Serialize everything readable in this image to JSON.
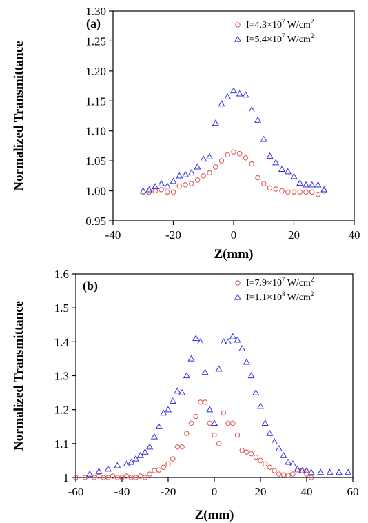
{
  "colors": {
    "series1": "#e05a5a",
    "series2": "#2f2fe0",
    "axis": "#000000"
  },
  "chart_data": [
    {
      "type": "scatter",
      "panel_label": "(a)",
      "xlabel": "Z(mm)",
      "ylabel": "Normalized Transmittance",
      "xlim": [
        -40,
        40
      ],
      "ylim": [
        0.95,
        1.3
      ],
      "xticks": [
        -40,
        -20,
        0,
        20,
        40
      ],
      "yticks": [
        0.95,
        1.0,
        1.05,
        1.1,
        1.15,
        1.2,
        1.25,
        1.3
      ],
      "ytick_labels": [
        "0.95",
        "1.00",
        "1.05",
        "1.10",
        "1.15",
        "1.20",
        "1.25",
        "1.30"
      ],
      "legend_position": "top-right",
      "series": [
        {
          "legend_base": "I=4.3×10",
          "legend_exp": "7",
          "legend_unit": " W/cm",
          "legend_unit_exp": "2",
          "marker": "circle",
          "x": [
            -30,
            -28,
            -26,
            -24,
            -22,
            -20,
            -18,
            -16,
            -14,
            -12,
            -10,
            -8,
            -6,
            -4,
            -2,
            0,
            2,
            4,
            6,
            8,
            10,
            12,
            14,
            16,
            18,
            20,
            22,
            24,
            26,
            28,
            30
          ],
          "y": [
            0.998,
            0.998,
            1.0,
            1.002,
            0.998,
            0.998,
            1.008,
            1.01,
            1.012,
            1.018,
            1.025,
            1.03,
            1.04,
            1.05,
            1.06,
            1.065,
            1.062,
            1.055,
            1.045,
            1.022,
            1.012,
            1.005,
            1.003,
            1.0,
            0.998,
            0.998,
            0.998,
            0.998,
            0.998,
            0.994,
            1.0
          ]
        },
        {
          "legend_base": "I=5.4×10",
          "legend_exp": "7",
          "legend_unit": " W/cm",
          "legend_unit_exp": "2",
          "marker": "triangle",
          "x": [
            -30,
            -28,
            -26,
            -24,
            -22,
            -20,
            -18,
            -16,
            -14,
            -12,
            -10,
            -8,
            -6,
            -4,
            -2,
            0,
            2,
            4,
            6,
            8,
            10,
            12,
            14,
            16,
            18,
            20,
            22,
            24,
            26,
            28,
            30
          ],
          "y": [
            1.0,
            1.002,
            1.007,
            1.012,
            1.008,
            1.016,
            1.025,
            1.027,
            1.03,
            1.04,
            1.053,
            1.057,
            1.113,
            1.145,
            1.157,
            1.167,
            1.162,
            1.16,
            1.135,
            1.118,
            1.086,
            1.058,
            1.047,
            1.036,
            1.032,
            1.024,
            1.013,
            1.01,
            1.01,
            1.01,
            1.002
          ]
        }
      ]
    },
    {
      "type": "scatter",
      "panel_label": "(b)",
      "xlabel": "Z(mm)",
      "ylabel": "Normalized Transmittance",
      "xlim": [
        -60,
        60
      ],
      "ylim": [
        1.0,
        1.6
      ],
      "xticks": [
        -60,
        -40,
        -20,
        0,
        20,
        40,
        60
      ],
      "yticks": [
        1.0,
        1.1,
        1.2,
        1.3,
        1.4,
        1.5,
        1.6
      ],
      "ytick_labels": [
        "1",
        "1.1",
        "1.2",
        "1.3",
        "1.4",
        "1.5",
        "1.6"
      ],
      "legend_position": "top-right",
      "series": [
        {
          "legend_base": "I=7.9×10",
          "legend_exp": "7",
          "legend_unit": " W/cm",
          "legend_unit_exp": "2",
          "marker": "circle",
          "x": [
            -60,
            -56,
            -52,
            -50,
            -48,
            -46,
            -44,
            -42,
            -40,
            -38,
            -36,
            -34,
            -32,
            -30,
            -28,
            -26,
            -24,
            -22,
            -20,
            -18,
            -16,
            -14,
            -12,
            -10,
            -8,
            -6,
            -4,
            -2,
            0,
            2,
            4,
            6,
            8,
            10,
            12,
            14,
            16,
            18,
            20,
            22,
            24,
            26,
            28,
            30,
            32,
            34,
            36,
            38,
            40,
            42
          ],
          "y": [
            1.0,
            1.0,
            1.0,
            1.004,
            1.0,
            1.0,
            1.004,
            1.0,
            1.0,
            1.004,
            1.0,
            1.0,
            1.004,
            1.0,
            1.01,
            1.02,
            1.022,
            1.03,
            1.04,
            1.055,
            1.09,
            1.09,
            1.13,
            1.16,
            1.18,
            1.222,
            1.222,
            1.16,
            1.125,
            1.1,
            1.19,
            1.16,
            1.16,
            1.125,
            1.08,
            1.075,
            1.07,
            1.06,
            1.05,
            1.04,
            1.03,
            1.02,
            1.01,
            1.008,
            1.006,
            1.01,
            1.02,
            1.02,
            1.01,
            1.0
          ]
        },
        {
          "legend_base": "I=1.1×10",
          "legend_exp": "8",
          "legend_unit": " W/cm",
          "legend_unit_exp": "2",
          "marker": "triangle",
          "x": [
            -54,
            -50,
            -46,
            -42,
            -38,
            -36,
            -34,
            -32,
            -30,
            -28,
            -26,
            -24,
            -22,
            -20,
            -18,
            -16,
            -14,
            -12,
            -10,
            -8,
            -6,
            -4,
            -2,
            0,
            2,
            4,
            6,
            8,
            10,
            12,
            14,
            16,
            18,
            20,
            22,
            24,
            26,
            28,
            30,
            32,
            34,
            36,
            38,
            40,
            42,
            46,
            50,
            54,
            58
          ],
          "y": [
            1.01,
            1.018,
            1.025,
            1.035,
            1.04,
            1.045,
            1.055,
            1.065,
            1.075,
            1.09,
            1.12,
            1.15,
            1.19,
            1.2,
            1.225,
            1.255,
            1.25,
            1.3,
            1.35,
            1.41,
            1.4,
            1.31,
            1.2,
            1.16,
            1.32,
            1.4,
            1.4,
            1.415,
            1.405,
            1.38,
            1.34,
            1.3,
            1.25,
            1.21,
            1.16,
            1.13,
            1.105,
            1.085,
            1.065,
            1.045,
            1.04,
            1.025,
            1.02,
            1.02,
            1.015,
            1.015,
            1.015,
            1.015,
            1.015
          ]
        }
      ]
    }
  ]
}
